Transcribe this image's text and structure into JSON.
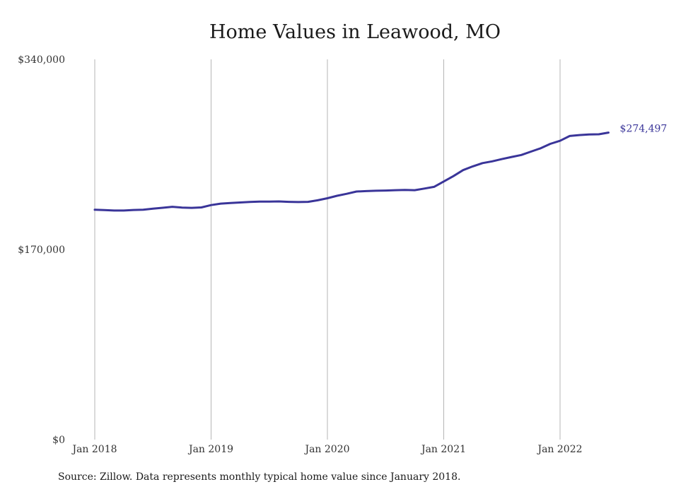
{
  "chart_data": {
    "type": "line",
    "title": "Home Values in Leawood, MO",
    "xlabel": "",
    "ylabel": "",
    "ylim": [
      0,
      340000
    ],
    "y_ticks": [
      "$0",
      "$170,000",
      "$340,000"
    ],
    "x_ticks": [
      "Jan 2018",
      "Jan 2019",
      "Jan 2020",
      "Jan 2021",
      "Jan 2022"
    ],
    "grid": "vertical",
    "line_color": "#3a3599",
    "end_label": "$274,497",
    "series": [
      {
        "x": [
          "2018-01",
          "2018-02",
          "2018-03",
          "2018-04",
          "2018-05",
          "2018-06",
          "2018-07",
          "2018-08",
          "2018-09",
          "2018-10",
          "2018-11",
          "2018-12",
          "2019-01",
          "2019-02",
          "2019-03",
          "2019-04",
          "2019-05",
          "2019-06",
          "2019-07",
          "2019-08",
          "2019-09",
          "2019-10",
          "2019-11",
          "2019-12",
          "2020-01",
          "2020-02",
          "2020-03",
          "2020-04",
          "2020-05",
          "2020-06",
          "2020-07",
          "2020-08",
          "2020-09",
          "2020-10",
          "2020-11",
          "2020-12",
          "2021-01",
          "2021-02",
          "2021-03",
          "2021-04",
          "2021-05",
          "2021-06",
          "2021-07",
          "2021-08",
          "2021-09",
          "2021-10",
          "2021-11",
          "2021-12",
          "2022-01",
          "2022-02",
          "2022-03",
          "2022-04",
          "2022-05",
          "2022-06"
        ],
        "values": [
          205500,
          205200,
          204800,
          204800,
          205300,
          205500,
          206500,
          207300,
          208200,
          207500,
          207200,
          207600,
          209700,
          211000,
          211500,
          212000,
          212500,
          212800,
          212800,
          213000,
          212600,
          212400,
          212600,
          214000,
          215800,
          218000,
          219800,
          221800,
          222200,
          222500,
          222700,
          223000,
          223300,
          223000,
          224500,
          226000,
          230800,
          235600,
          241000,
          244300,
          247200,
          248800,
          250800,
          252700,
          254500,
          257500,
          260500,
          264500,
          267200,
          271500,
          272300,
          272800,
          273000,
          274497
        ]
      }
    ]
  },
  "source_text": "Source: Zillow. Data represents monthly typical home value since January 2018."
}
